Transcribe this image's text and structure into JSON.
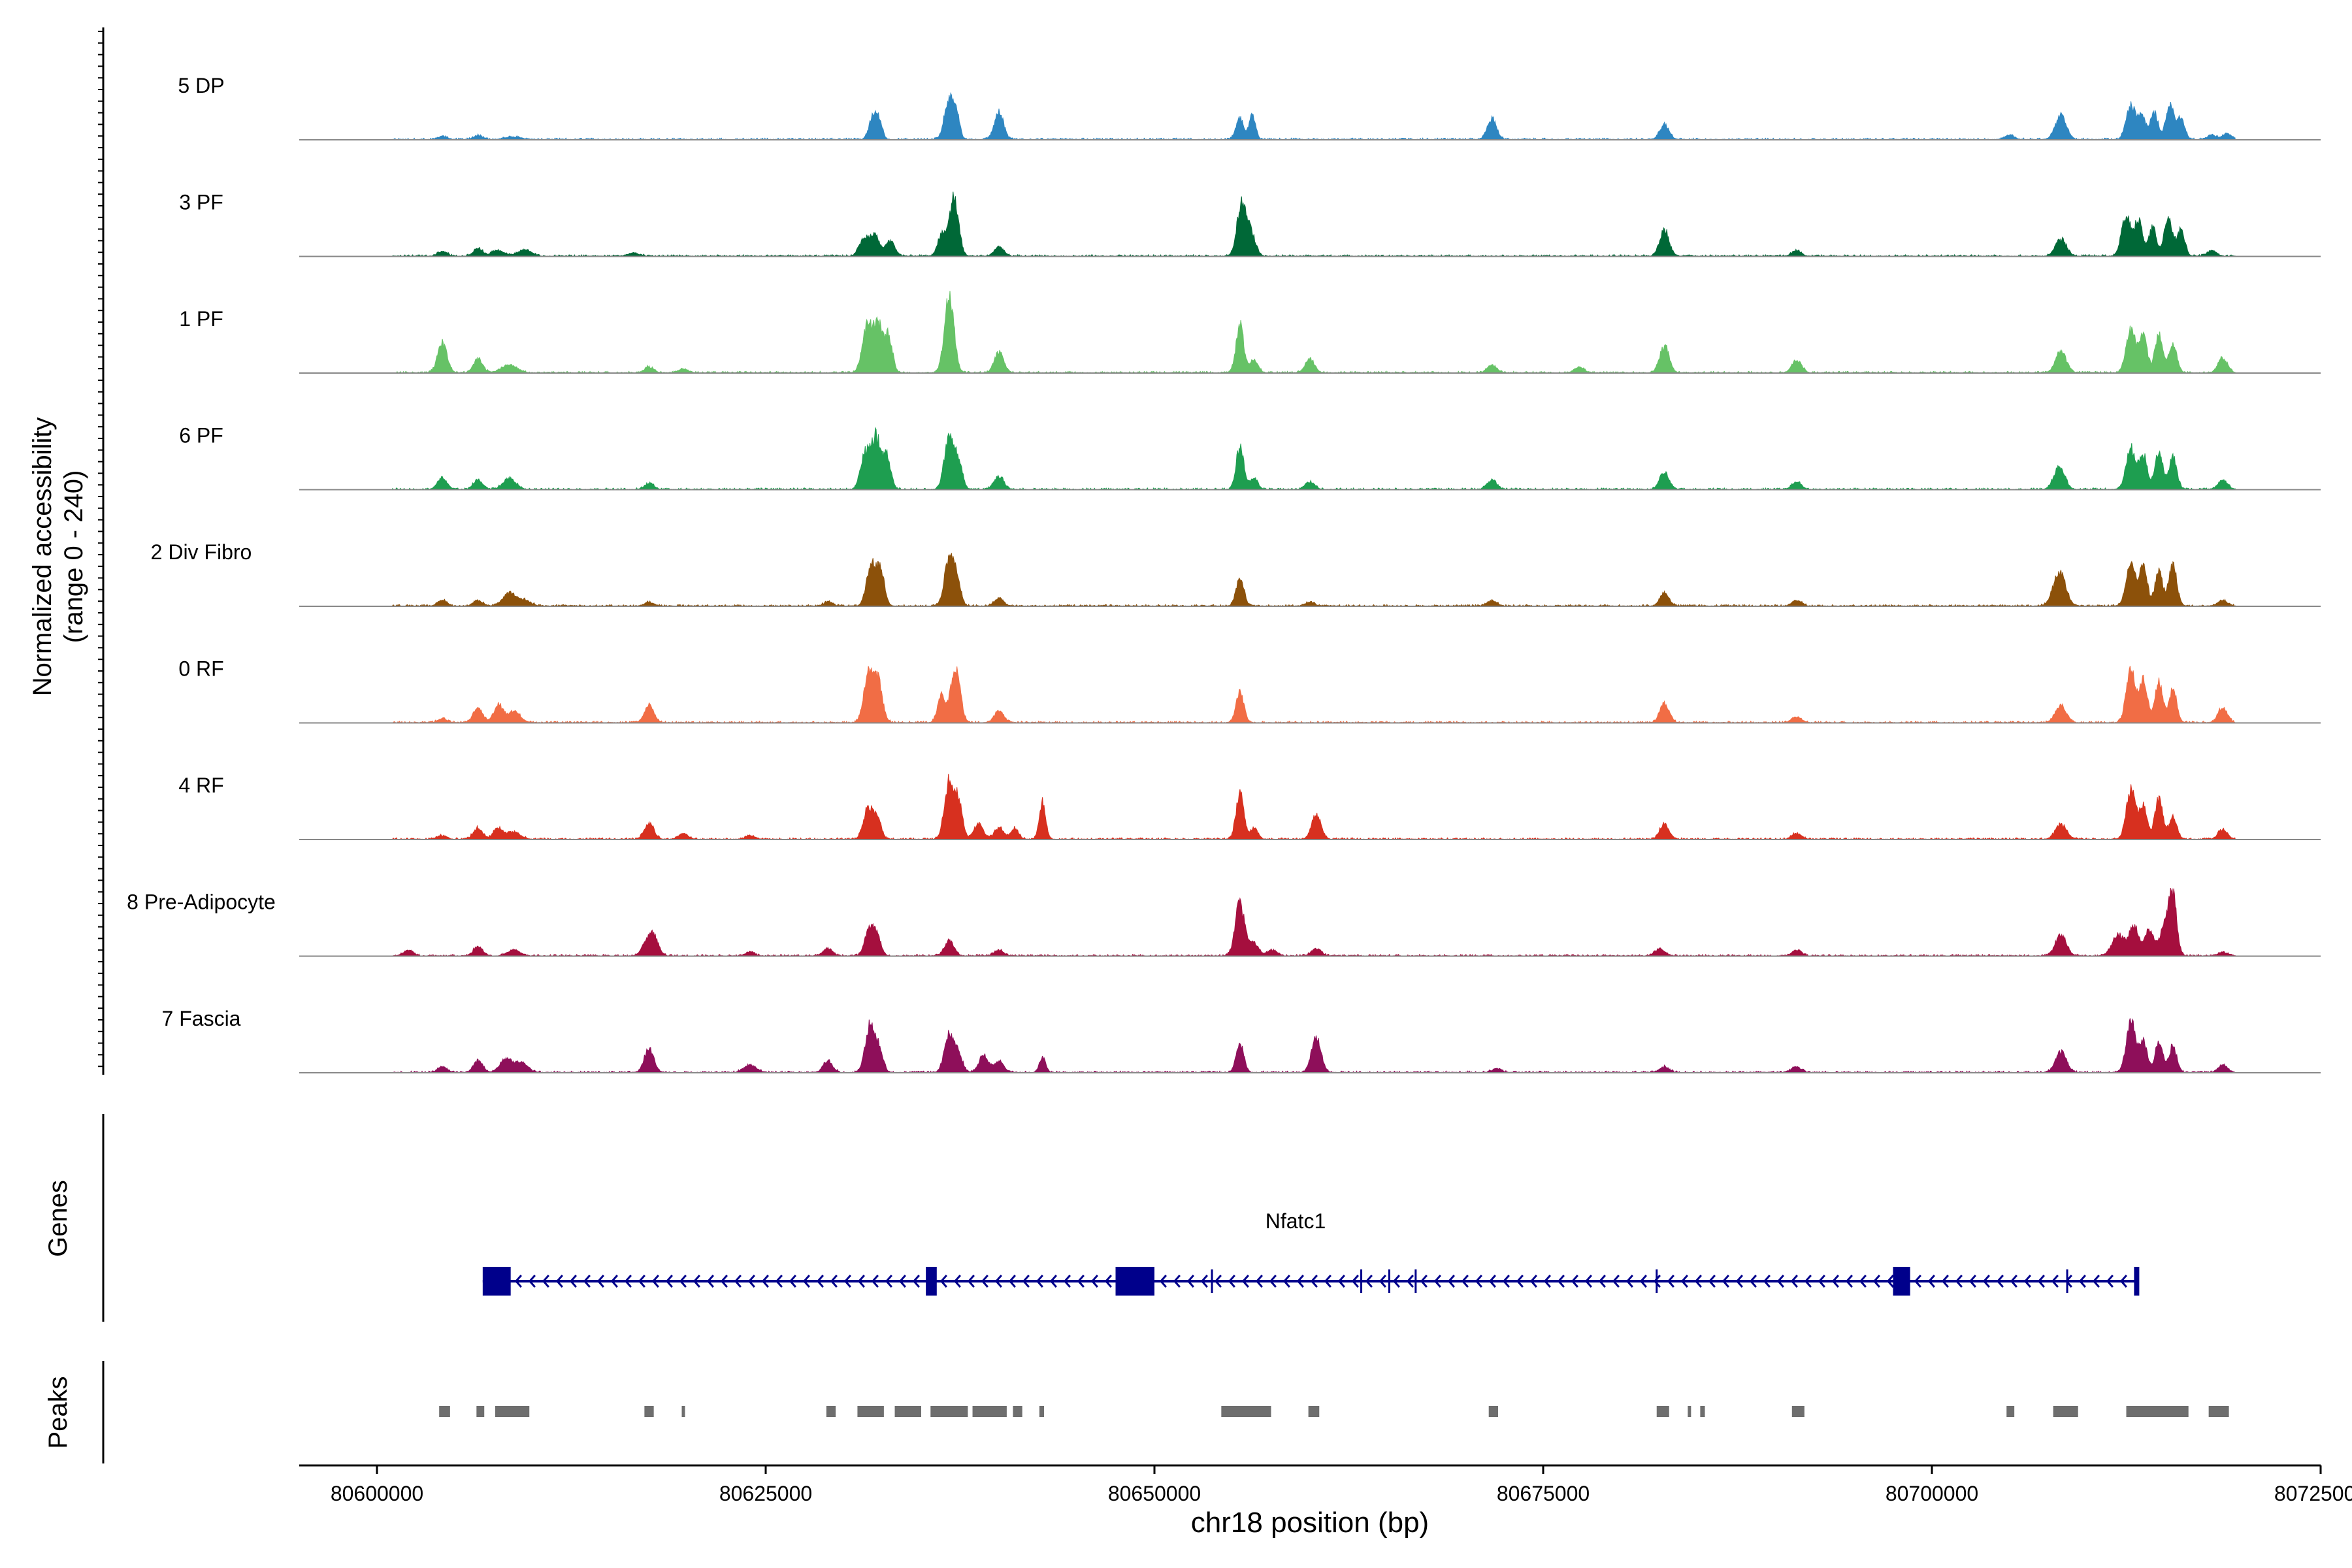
{
  "chart_data": {
    "type": "area",
    "title": "",
    "region": "chr18",
    "xlabel": "chr18 position (bp)",
    "xlim": [
      80595000,
      80725000
    ],
    "xticks": [
      80600000,
      80625000,
      80650000,
      80675000,
      80700000,
      80725000
    ],
    "xtick_labels": [
      "80600000",
      "80625000",
      "80650000",
      "80675000",
      "80700000",
      "80725000"
    ],
    "ylabel_line1": "Normalized accessibility",
    "ylabel_line2": "(range 0 - 240)",
    "ylim": [
      0,
      240
    ],
    "track_start": 80601000,
    "track_end": 80719500,
    "series": [
      {
        "name": "5 DP",
        "color": "#2E86C1",
        "peaks": [
          [
            80604200,
            8,
            300
          ],
          [
            80606500,
            10,
            300
          ],
          [
            80608800,
            7,
            500
          ],
          [
            80631900,
            60,
            250
          ],
          [
            80632300,
            45,
            200
          ],
          [
            80636800,
            110,
            300
          ],
          [
            80637300,
            55,
            200
          ],
          [
            80640000,
            70,
            300
          ],
          [
            80655500,
            55,
            250
          ],
          [
            80656300,
            65,
            200
          ],
          [
            80671700,
            55,
            300
          ],
          [
            80682800,
            40,
            300
          ],
          [
            80705000,
            12,
            300
          ],
          [
            80708300,
            65,
            350
          ],
          [
            80712800,
            90,
            300
          ],
          [
            80713500,
            60,
            250
          ],
          [
            80714300,
            70,
            250
          ],
          [
            80715300,
            95,
            250
          ],
          [
            80716000,
            55,
            250
          ],
          [
            80718000,
            12,
            300
          ],
          [
            80719000,
            15,
            300
          ]
        ]
      },
      {
        "name": "3 PF",
        "color": "#006837",
        "peaks": [
          [
            80604200,
            12,
            300
          ],
          [
            80606500,
            20,
            300
          ],
          [
            80607800,
            15,
            400
          ],
          [
            80609500,
            18,
            400
          ],
          [
            80616500,
            8,
            400
          ],
          [
            80631300,
            45,
            300
          ],
          [
            80632000,
            55,
            300
          ],
          [
            80633000,
            40,
            300
          ],
          [
            80636300,
            55,
            250
          ],
          [
            80637100,
            150,
            300
          ],
          [
            80640000,
            25,
            300
          ],
          [
            80655600,
            135,
            300
          ],
          [
            80656200,
            60,
            300
          ],
          [
            80682800,
            70,
            300
          ],
          [
            80691300,
            15,
            300
          ],
          [
            80708300,
            45,
            350
          ],
          [
            80712500,
            110,
            300
          ],
          [
            80713300,
            95,
            250
          ],
          [
            80714200,
            75,
            250
          ],
          [
            80715200,
            105,
            250
          ],
          [
            80716000,
            70,
            250
          ],
          [
            80718000,
            15,
            300
          ]
        ]
      },
      {
        "name": "1 PF",
        "color": "#66C266",
        "peaks": [
          [
            80604200,
            80,
            300
          ],
          [
            80606500,
            35,
            300
          ],
          [
            80608500,
            20,
            500
          ],
          [
            80617500,
            15,
            300
          ],
          [
            80619700,
            10,
            300
          ],
          [
            80631500,
            120,
            300
          ],
          [
            80632200,
            130,
            300
          ],
          [
            80632900,
            95,
            250
          ],
          [
            80636800,
            210,
            300
          ],
          [
            80640000,
            55,
            300
          ],
          [
            80655500,
            125,
            250
          ],
          [
            80656400,
            35,
            250
          ],
          [
            80660000,
            35,
            300
          ],
          [
            80671700,
            20,
            300
          ],
          [
            80677300,
            15,
            300
          ],
          [
            80682800,
            70,
            300
          ],
          [
            80691300,
            35,
            300
          ],
          [
            80708300,
            55,
            350
          ],
          [
            80712800,
            115,
            300
          ],
          [
            80713600,
            95,
            250
          ],
          [
            80714600,
            105,
            250
          ],
          [
            80715500,
            80,
            250
          ],
          [
            80718700,
            40,
            300
          ]
        ]
      },
      {
        "name": "6 PF",
        "color": "#1E9E50",
        "peaks": [
          [
            80604200,
            30,
            300
          ],
          [
            80606500,
            25,
            300
          ],
          [
            80608500,
            30,
            400
          ],
          [
            80617500,
            15,
            300
          ],
          [
            80631400,
            90,
            300
          ],
          [
            80632100,
            140,
            300
          ],
          [
            80632800,
            85,
            250
          ],
          [
            80636800,
            140,
            300
          ],
          [
            80637400,
            70,
            250
          ],
          [
            80640000,
            35,
            300
          ],
          [
            80655500,
            110,
            250
          ],
          [
            80656400,
            30,
            250
          ],
          [
            80660000,
            20,
            300
          ],
          [
            80671700,
            25,
            300
          ],
          [
            80682800,
            45,
            300
          ],
          [
            80691300,
            20,
            300
          ],
          [
            80708200,
            60,
            350
          ],
          [
            80712800,
            110,
            300
          ],
          [
            80713600,
            90,
            250
          ],
          [
            80714600,
            100,
            250
          ],
          [
            80715500,
            85,
            250
          ],
          [
            80718700,
            25,
            300
          ]
        ]
      },
      {
        "name": "2 Div Fibro",
        "color": "#8C510A",
        "peaks": [
          [
            80604200,
            15,
            300
          ],
          [
            80606500,
            15,
            300
          ],
          [
            80608500,
            35,
            400
          ],
          [
            80609500,
            15,
            400
          ],
          [
            80617500,
            10,
            300
          ],
          [
            80629000,
            10,
            300
          ],
          [
            80631800,
            110,
            300
          ],
          [
            80632400,
            90,
            250
          ],
          [
            80636800,
            125,
            300
          ],
          [
            80637300,
            60,
            250
          ],
          [
            80640000,
            20,
            300
          ],
          [
            80655500,
            75,
            250
          ],
          [
            80660000,
            10,
            300
          ],
          [
            80671700,
            15,
            300
          ],
          [
            80682800,
            35,
            300
          ],
          [
            80691300,
            15,
            300
          ],
          [
            80708200,
            90,
            400
          ],
          [
            80712800,
            110,
            300
          ],
          [
            80713600,
            100,
            250
          ],
          [
            80714600,
            90,
            250
          ],
          [
            80715500,
            110,
            250
          ],
          [
            80718700,
            15,
            300
          ]
        ]
      },
      {
        "name": "0 RF",
        "color": "#F16D45",
        "peaks": [
          [
            80604200,
            10,
            300
          ],
          [
            80606500,
            40,
            300
          ],
          [
            80607800,
            45,
            300
          ],
          [
            80608800,
            30,
            400
          ],
          [
            80617500,
            45,
            300
          ],
          [
            80631600,
            120,
            300
          ],
          [
            80632200,
            110,
            300
          ],
          [
            80636300,
            70,
            250
          ],
          [
            80637200,
            150,
            300
          ],
          [
            80640000,
            30,
            300
          ],
          [
            80655500,
            80,
            250
          ],
          [
            80682800,
            50,
            300
          ],
          [
            80691300,
            15,
            300
          ],
          [
            80708300,
            45,
            350
          ],
          [
            80712800,
            135,
            300
          ],
          [
            80713600,
            115,
            250
          ],
          [
            80714600,
            110,
            250
          ],
          [
            80715500,
            90,
            250
          ],
          [
            80718700,
            40,
            300
          ]
        ]
      },
      {
        "name": "4 RF",
        "color": "#D7301F",
        "peaks": [
          [
            80604200,
            10,
            300
          ],
          [
            80606500,
            30,
            300
          ],
          [
            80607800,
            30,
            300
          ],
          [
            80608800,
            20,
            400
          ],
          [
            80617500,
            45,
            300
          ],
          [
            80619700,
            15,
            300
          ],
          [
            80624000,
            10,
            300
          ],
          [
            80631600,
            85,
            300
          ],
          [
            80632200,
            50,
            250
          ],
          [
            80636800,
            155,
            300
          ],
          [
            80637400,
            95,
            250
          ],
          [
            80638700,
            40,
            300
          ],
          [
            80640000,
            30,
            300
          ],
          [
            80641000,
            30,
            250
          ],
          [
            80642800,
            100,
            200
          ],
          [
            80655500,
            120,
            250
          ],
          [
            80656400,
            30,
            250
          ],
          [
            80660400,
            65,
            300
          ],
          [
            80682800,
            40,
            300
          ],
          [
            80691300,
            15,
            300
          ],
          [
            80708300,
            40,
            350
          ],
          [
            80712800,
            130,
            300
          ],
          [
            80713600,
            90,
            250
          ],
          [
            80714600,
            110,
            250
          ],
          [
            80715500,
            60,
            250
          ],
          [
            80718700,
            25,
            300
          ]
        ]
      },
      {
        "name": "8 Pre-Adipocyte",
        "color": "#A50F3E",
        "peaks": [
          [
            80602000,
            15,
            300
          ],
          [
            80606500,
            25,
            300
          ],
          [
            80608800,
            15,
            400
          ],
          [
            80617300,
            30,
            300
          ],
          [
            80617800,
            50,
            300
          ],
          [
            80624000,
            10,
            300
          ],
          [
            80629000,
            20,
            300
          ],
          [
            80631700,
            75,
            300
          ],
          [
            80632200,
            40,
            250
          ],
          [
            80636800,
            40,
            300
          ],
          [
            80640000,
            15,
            300
          ],
          [
            80655500,
            140,
            300
          ],
          [
            80656400,
            35,
            300
          ],
          [
            80657600,
            15,
            300
          ],
          [
            80660400,
            20,
            300
          ],
          [
            80682500,
            20,
            300
          ],
          [
            80691300,
            15,
            300
          ],
          [
            80708300,
            55,
            350
          ],
          [
            80712000,
            55,
            400
          ],
          [
            80713000,
            80,
            300
          ],
          [
            80714000,
            70,
            300
          ],
          [
            80715000,
            85,
            300
          ],
          [
            80715500,
            150,
            250
          ],
          [
            80718700,
            10,
            300
          ]
        ]
      },
      {
        "name": "7 Fascia",
        "color": "#8E0F5A",
        "peaks": [
          [
            80604200,
            15,
            300
          ],
          [
            80606500,
            30,
            300
          ],
          [
            80608300,
            35,
            400
          ],
          [
            80609300,
            25,
            400
          ],
          [
            80617500,
            65,
            300
          ],
          [
            80624000,
            20,
            400
          ],
          [
            80629000,
            30,
            300
          ],
          [
            80631700,
            125,
            300
          ],
          [
            80632300,
            60,
            250
          ],
          [
            80636800,
            100,
            300
          ],
          [
            80637400,
            50,
            250
          ],
          [
            80639000,
            45,
            300
          ],
          [
            80640000,
            30,
            300
          ],
          [
            80642800,
            40,
            200
          ],
          [
            80655500,
            75,
            250
          ],
          [
            80660400,
            95,
            300
          ],
          [
            80672000,
            10,
            300
          ],
          [
            80682800,
            15,
            300
          ],
          [
            80691300,
            15,
            300
          ],
          [
            80708300,
            55,
            350
          ],
          [
            80712800,
            135,
            300
          ],
          [
            80713600,
            80,
            250
          ],
          [
            80714600,
            80,
            250
          ],
          [
            80715500,
            70,
            250
          ],
          [
            80718700,
            20,
            300
          ]
        ]
      }
    ]
  },
  "genes": {
    "label": "Genes",
    "gene_name": "Nfatc1",
    "color": "#00008B",
    "start": 80606800,
    "end": 80713200,
    "strand": "-",
    "exons": [
      [
        80606800,
        80608600
      ],
      [
        80635300,
        80636000
      ],
      [
        80647500,
        80650000
      ],
      [
        80697500,
        80698600
      ],
      [
        80713000,
        80713300
      ]
    ],
    "introns_ticks": [
      80653700,
      80663300,
      80665100,
      80666800,
      80682300,
      80708700
    ]
  },
  "peaks_track": {
    "label": "Peaks",
    "color": "#6E6E6E",
    "regions": [
      [
        80604000,
        80604700
      ],
      [
        80606400,
        80606900
      ],
      [
        80607600,
        80609800
      ],
      [
        80617200,
        80617800
      ],
      [
        80619600,
        80619800
      ],
      [
        80628900,
        80629500
      ],
      [
        80630900,
        80632600
      ],
      [
        80633300,
        80635000
      ],
      [
        80635600,
        80638000
      ],
      [
        80638300,
        80640500
      ],
      [
        80640900,
        80641500
      ],
      [
        80642600,
        80642900
      ],
      [
        80654300,
        80657500
      ],
      [
        80659900,
        80660600
      ],
      [
        80671500,
        80672100
      ],
      [
        80682300,
        80683100
      ],
      [
        80684300,
        80684400
      ],
      [
        80685100,
        80685400
      ],
      [
        80691000,
        80691800
      ],
      [
        80704800,
        80705300
      ],
      [
        80707800,
        80709400
      ],
      [
        80712500,
        80716500
      ],
      [
        80717800,
        80719100
      ]
    ]
  }
}
